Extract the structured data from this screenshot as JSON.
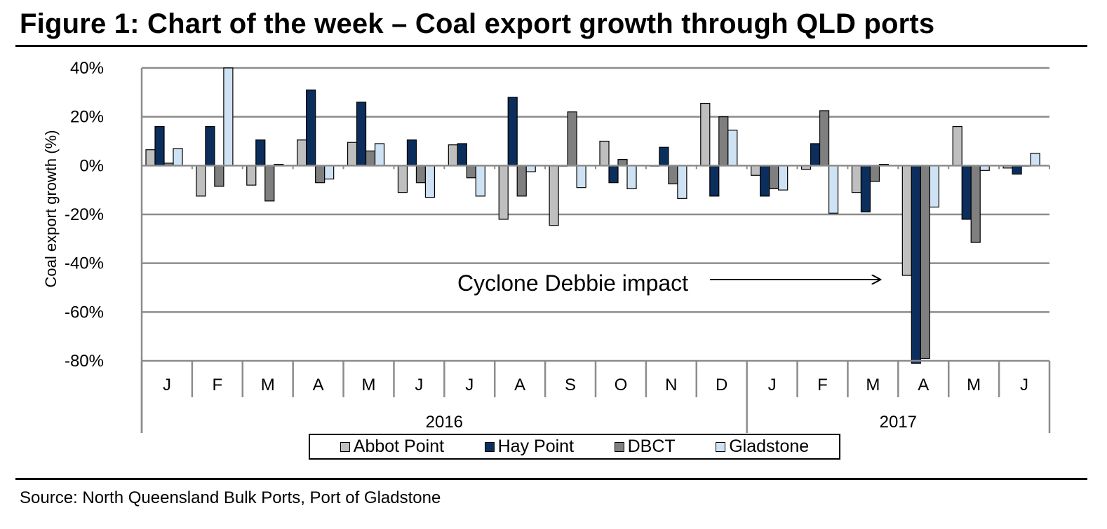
{
  "title": "Figure 1: Chart of the week – Coal export growth through QLD ports",
  "source": "Source: North Queensland Bulk Ports, Port of Gladstone",
  "chart_data": {
    "type": "bar",
    "title": "Figure 1: Chart of the week – Coal export growth through QLD ports",
    "xlabel": "",
    "ylabel": "Coal export growth (%)",
    "ylim": [
      -80,
      40
    ],
    "yticks": [
      40,
      20,
      0,
      -20,
      -40,
      -60,
      -80
    ],
    "ytick_labels": [
      "40%",
      "20%",
      "0%",
      "-20%",
      "-40%",
      "-60%",
      "-80%"
    ],
    "grid": true,
    "categories": [
      "J",
      "F",
      "M",
      "A",
      "M",
      "J",
      "J",
      "A",
      "S",
      "O",
      "N",
      "D",
      "J",
      "F",
      "M",
      "A",
      "M",
      "J"
    ],
    "year_groups": [
      {
        "label": "2016",
        "start": 0,
        "count": 12
      },
      {
        "label": "2017",
        "start": 12,
        "count": 6
      }
    ],
    "series": [
      {
        "name": "Abbot Point",
        "color": "#bfbfbf",
        "values": [
          6.5,
          -12.5,
          -8,
          10.5,
          9.5,
          -11,
          8.5,
          -22,
          -24.5,
          10,
          0,
          25.5,
          -4,
          -1.5,
          -11,
          -45,
          16,
          -1
        ]
      },
      {
        "name": "Hay Point",
        "color": "#0b2e5c",
        "values": [
          16,
          16,
          10.5,
          31,
          26,
          10.5,
          9,
          28,
          0,
          -7,
          7.5,
          -12.5,
          -12.5,
          9,
          -19,
          -81,
          -22,
          -3.5
        ]
      },
      {
        "name": "DBCT",
        "color": "#7f7f7f",
        "values": [
          1,
          -8.5,
          -14.5,
          -7,
          6,
          -7,
          -5,
          -12.5,
          22,
          2.5,
          -7.5,
          20,
          -9.5,
          22.5,
          -6.5,
          -79,
          -31.5,
          0
        ]
      },
      {
        "name": "Gladstone",
        "color": "#cfe2f3",
        "values": [
          7,
          40,
          0.5,
          -5.5,
          9,
          -13,
          -12.5,
          -2.5,
          -9,
          -9.5,
          -13.5,
          14.5,
          -10,
          -19.5,
          0.5,
          -17,
          -2,
          5
        ]
      }
    ],
    "annotations": [
      {
        "text": "Cyclone Debbie impact",
        "points_to_category": 15,
        "arrow": true
      }
    ],
    "legend_position": "bottom"
  }
}
